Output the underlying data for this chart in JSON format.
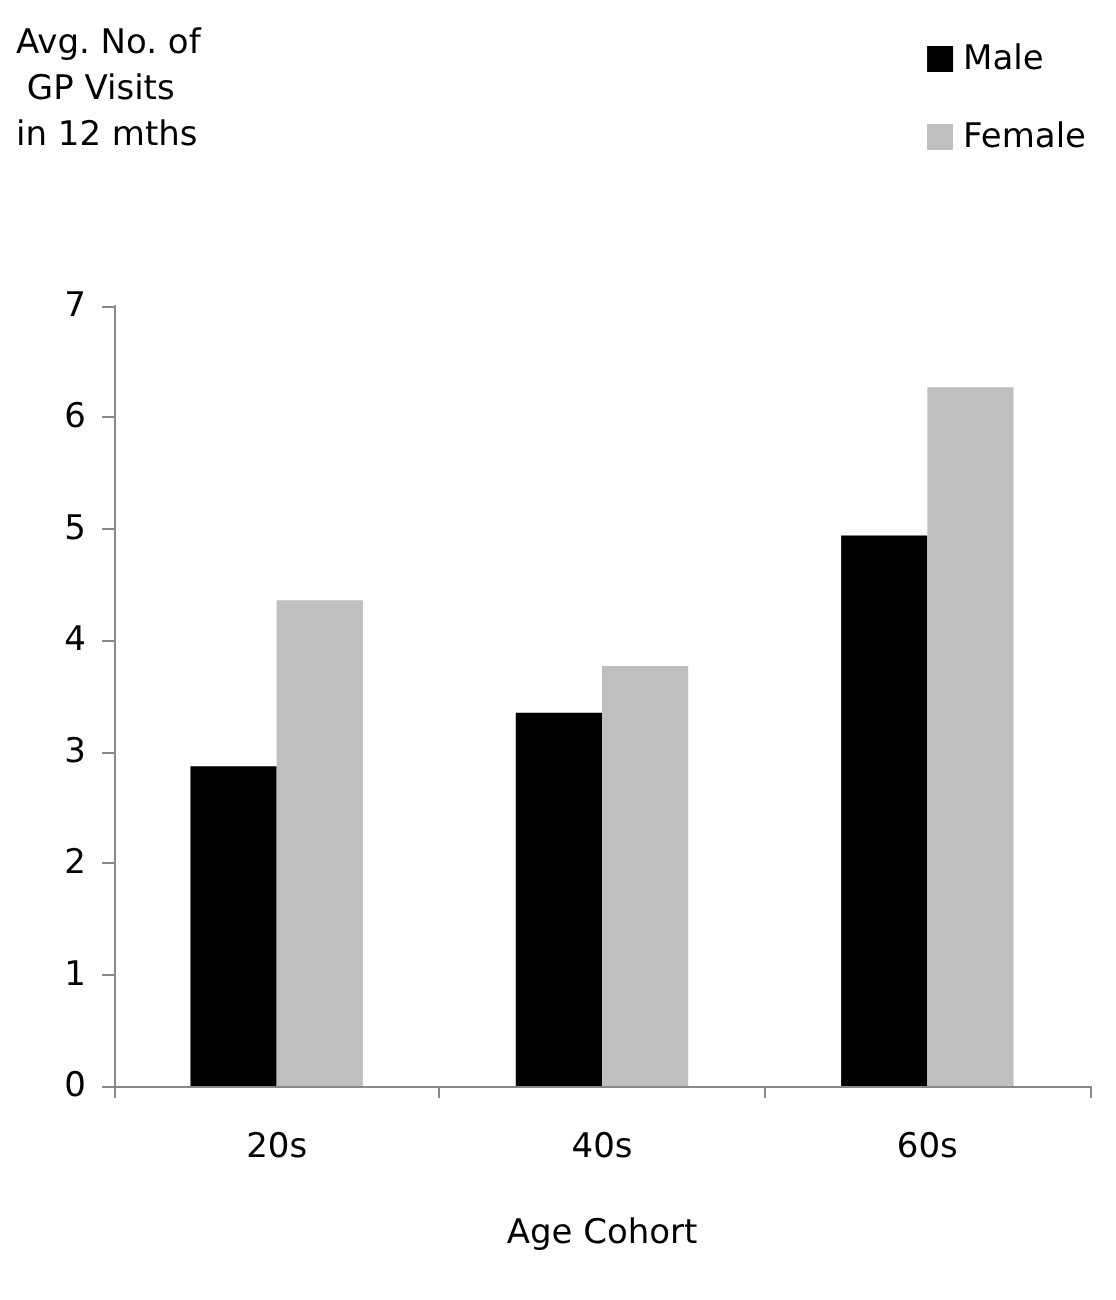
{
  "chart_data": {
    "type": "bar",
    "ylabel": "Avg. No. of GP Visits in 12 mths",
    "xlabel": "Age Cohort",
    "categories": [
      "20s",
      "40s",
      "60s"
    ],
    "series": [
      {
        "name": "Male",
        "color": "#000000",
        "values": [
          2.87,
          3.35,
          4.94
        ]
      },
      {
        "name": "Female",
        "color": "#bfbfbf",
        "values": [
          4.36,
          3.77,
          6.27
        ]
      }
    ],
    "ylim": [
      0,
      7
    ],
    "yticks": [
      0,
      1,
      2,
      3,
      4,
      5,
      6,
      7
    ],
    "grid": false,
    "legend": "top right"
  }
}
